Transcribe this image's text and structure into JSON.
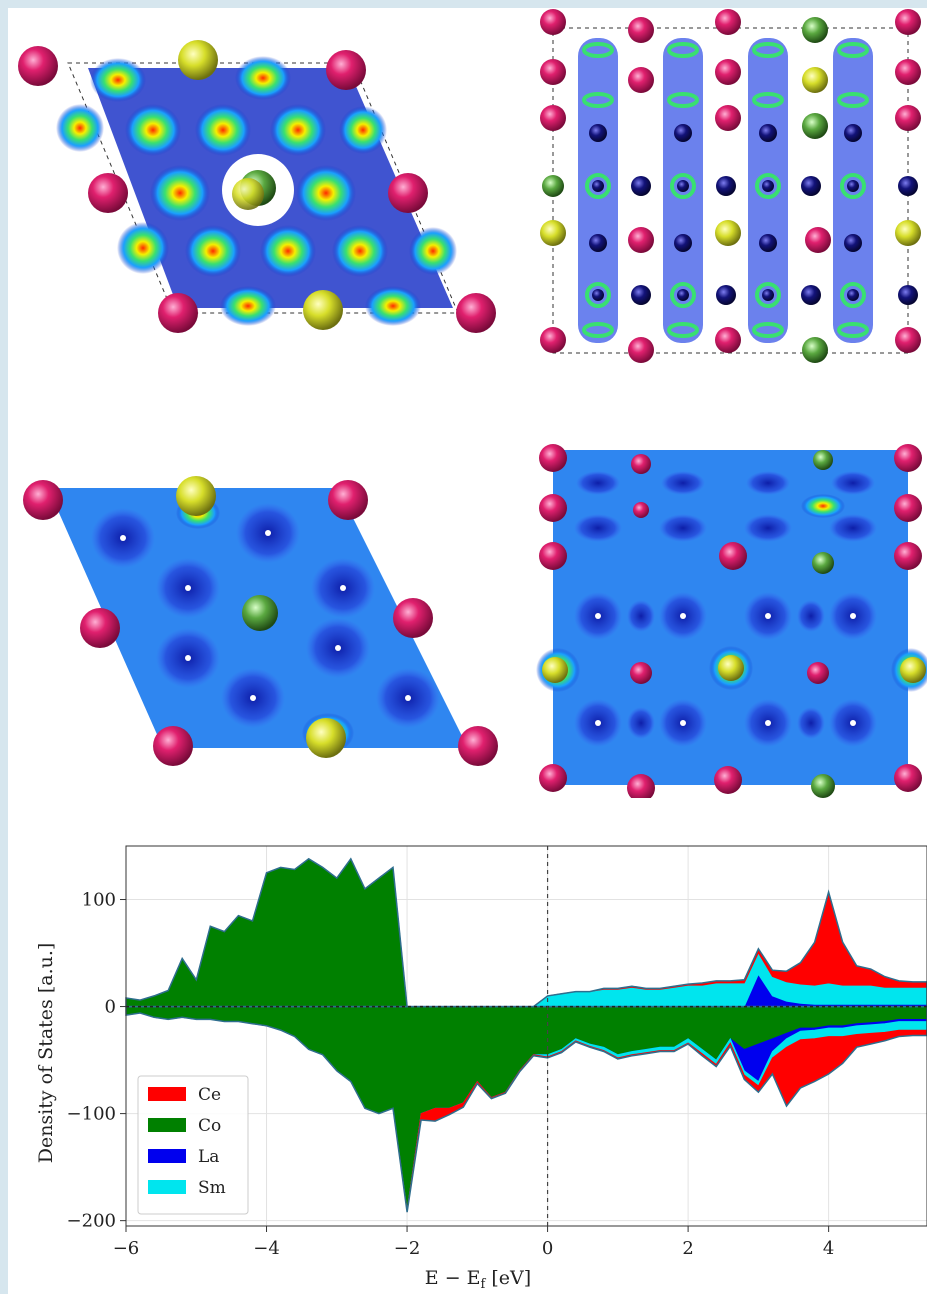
{
  "colors": {
    "frame": "#d6e6ee",
    "field_low": "#1030c8",
    "field_bg": "#2f86f0",
    "hot": "#ff2a00",
    "mid_green": "#39e070",
    "yellow": "#f5f000",
    "atom_magenta": "#e0206e",
    "atom_yellow": "#d7de2a",
    "atom_green": "#5aa840",
    "atom_navy": "#13137a"
  },
  "panels": [
    {
      "name": "hexagonal-top-view-contour",
      "style": "contour"
    },
    {
      "name": "side-view-contour",
      "style": "contour"
    },
    {
      "name": "hexagonal-top-view-slice",
      "style": "slice"
    },
    {
      "name": "side-view-slice",
      "style": "slice"
    }
  ],
  "chart_data": {
    "type": "area",
    "xlabel": "E − E",
    "xlabel_sub": "f",
    "xlabel_unit": " [eV]",
    "ylabel": "Density of States [a.u.]",
    "xlim": [
      -6,
      5.4
    ],
    "ylim": [
      -205,
      150
    ],
    "xticks": [
      -6,
      -4,
      -2,
      0,
      2,
      4
    ],
    "xtick_labels": [
      "−6",
      "−4",
      "−2",
      "0",
      "2",
      "4"
    ],
    "yticks": [
      -200,
      -100,
      0,
      100
    ],
    "ytick_labels": [
      "−200",
      "−100",
      "0",
      "100"
    ],
    "grid": true,
    "legend_position": "lower-left",
    "fermi_line_x": 0,
    "x": [
      -6,
      -5.8,
      -5.6,
      -5.4,
      -5.2,
      -5.0,
      -4.8,
      -4.6,
      -4.4,
      -4.2,
      -4.0,
      -3.8,
      -3.6,
      -3.4,
      -3.2,
      -3.0,
      -2.8,
      -2.6,
      -2.4,
      -2.2,
      -2.0,
      -1.8,
      -1.6,
      -1.4,
      -1.2,
      -1.0,
      -0.8,
      -0.6,
      -0.4,
      -0.2,
      0,
      0.2,
      0.4,
      0.6,
      0.8,
      1.0,
      1.2,
      1.4,
      1.6,
      1.8,
      2.0,
      2.2,
      2.4,
      2.6,
      2.8,
      3.0,
      3.2,
      3.4,
      3.6,
      3.8,
      4.0,
      4.2,
      4.4,
      4.6,
      4.8,
      5.0,
      5.2,
      5.4
    ],
    "series": [
      {
        "name": "Ce",
        "color": "#ff0000",
        "up": [
          0,
          0,
          0,
          0,
          0,
          0,
          0,
          0,
          0,
          0,
          0,
          0,
          0,
          0,
          0,
          0,
          0,
          0,
          0,
          0,
          0,
          0,
          0,
          0,
          0,
          0,
          0,
          0,
          0,
          0,
          0,
          0,
          0,
          0,
          1,
          1,
          1,
          1,
          1,
          1,
          1,
          2,
          2,
          2,
          3,
          4,
          6,
          10,
          20,
          40,
          85,
          40,
          18,
          15,
          10,
          6,
          5,
          5
        ],
        "down": [
          0,
          0,
          0,
          0,
          0,
          0,
          0,
          0,
          0,
          0,
          0,
          0,
          0,
          0,
          0,
          0,
          0,
          0,
          0,
          0,
          -2,
          -6,
          -12,
          -6,
          -4,
          -2,
          -1,
          -1,
          -1,
          -1,
          -1,
          -1,
          -1,
          -1,
          -1,
          -1,
          -1,
          -1,
          -1,
          -1,
          -1,
          -2,
          -2,
          -3,
          -4,
          -6,
          -15,
          -55,
          -45,
          -40,
          -35,
          -25,
          -12,
          -10,
          -8,
          -6,
          -5,
          -5
        ]
      },
      {
        "name": "Co",
        "color": "#008000",
        "up": [
          8,
          6,
          10,
          15,
          45,
          25,
          75,
          70,
          85,
          80,
          125,
          130,
          128,
          138,
          130,
          120,
          138,
          110,
          120,
          130,
          0,
          0,
          0,
          0,
          0,
          0,
          0,
          0,
          0,
          0,
          0,
          0,
          0,
          0,
          0,
          0,
          0,
          0,
          0,
          0,
          0,
          0,
          0,
          0,
          0,
          0,
          0,
          0,
          0,
          0,
          0,
          0,
          0,
          0,
          0,
          0,
          0,
          0
        ],
        "down": [
          -8,
          -6,
          -10,
          -12,
          -10,
          -12,
          -12,
          -14,
          -14,
          -16,
          -18,
          -22,
          -28,
          -40,
          -45,
          -60,
          -70,
          -95,
          -100,
          -95,
          -190,
          -100,
          -95,
          -95,
          -90,
          -70,
          -85,
          -80,
          -60,
          -45,
          -45,
          -40,
          -30,
          -35,
          -38,
          -45,
          -42,
          -40,
          -38,
          -38,
          -30,
          -40,
          -50,
          -30,
          -40,
          -35,
          -30,
          -25,
          -20,
          -20,
          -18,
          -18,
          -16,
          -15,
          -14,
          -12,
          -12,
          -12
        ]
      },
      {
        "name": "La",
        "color": "#0000ee",
        "up": [
          0,
          0,
          0,
          0,
          0,
          0,
          0,
          0,
          0,
          0,
          0,
          0,
          0,
          0,
          0,
          0,
          0,
          0,
          0,
          0,
          0,
          0,
          0,
          0,
          0,
          0,
          0,
          0,
          0,
          0,
          0,
          0,
          0,
          0,
          0,
          0,
          0,
          0,
          0,
          0,
          0,
          0,
          0,
          0,
          0,
          30,
          10,
          5,
          3,
          2,
          2,
          2,
          2,
          2,
          2,
          2,
          2,
          2
        ],
        "down": [
          0,
          0,
          0,
          0,
          0,
          0,
          0,
          0,
          0,
          0,
          0,
          0,
          0,
          0,
          0,
          0,
          0,
          0,
          0,
          0,
          0,
          0,
          0,
          0,
          0,
          0,
          0,
          0,
          0,
          0,
          0,
          0,
          0,
          0,
          0,
          0,
          0,
          0,
          0,
          0,
          0,
          0,
          0,
          0,
          -20,
          -35,
          -12,
          -5,
          -3,
          -2,
          -2,
          -2,
          -2,
          -2,
          -2,
          -2,
          -2,
          -2
        ]
      },
      {
        "name": "Sm",
        "color": "#00e5ee",
        "up": [
          0,
          0,
          0,
          0,
          0,
          0,
          0,
          0,
          0,
          0,
          0,
          0,
          0,
          0,
          0,
          0,
          0,
          0,
          0,
          0,
          0,
          0,
          0,
          0,
          0,
          0,
          0,
          0,
          0,
          0,
          10,
          12,
          14,
          14,
          16,
          16,
          18,
          16,
          16,
          18,
          20,
          20,
          22,
          22,
          22,
          20,
          18,
          18,
          18,
          18,
          20,
          18,
          18,
          18,
          16,
          16,
          16,
          16
        ],
        "down": [
          0,
          0,
          0,
          0,
          0,
          0,
          0,
          0,
          0,
          0,
          0,
          0,
          0,
          0,
          0,
          0,
          0,
          0,
          0,
          0,
          0,
          0,
          0,
          0,
          0,
          0,
          0,
          0,
          0,
          0,
          -2,
          -2,
          -2,
          -2,
          -3,
          -3,
          -3,
          -3,
          -3,
          -3,
          -4,
          -4,
          -4,
          -4,
          -4,
          -4,
          -6,
          -8,
          -8,
          -8,
          -8,
          -8,
          -8,
          -8,
          -8,
          -8,
          -8,
          -8
        ]
      }
    ]
  }
}
